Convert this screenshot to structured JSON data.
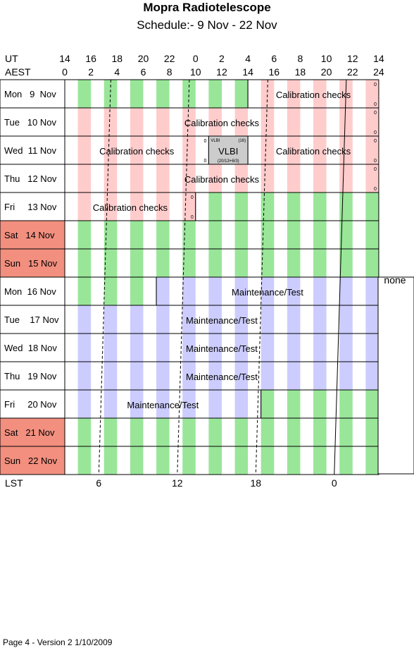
{
  "title": "Mopra Radiotelescope",
  "subtitle": "Schedule:- 9  Nov - 22 Nov",
  "ut_label": "UT",
  "aest_label": "AEST",
  "lst_label": "LST",
  "ut_hours": [
    "14",
    "16",
    "18",
    "20",
    "22",
    "0",
    "2",
    "4",
    "6",
    "8",
    "10",
    "12",
    "14"
  ],
  "aest_hours": [
    "0",
    "2",
    "4",
    "6",
    "8",
    "10",
    "12",
    "14",
    "16",
    "18",
    "20",
    "22",
    "24"
  ],
  "lst_ticks": [
    {
      "label": "6",
      "utc_hour": 16.6
    },
    {
      "label": "12",
      "utc_hour": 22.6
    },
    {
      "label": "18",
      "utc_hour": 28.6
    },
    {
      "label": "0",
      "utc_hour": 34.6
    }
  ],
  "colors": {
    "green": "#99e699",
    "pink": "#ffcccc",
    "lavender": "#ccccff",
    "gray": "#cccccc",
    "weekend": "#f28f7f",
    "white": "#ffffff"
  },
  "days": [
    {
      "label": "Mon   9  Nov",
      "weekend": false,
      "segments": [
        {
          "from": 0,
          "to": 14,
          "color": "green"
        },
        {
          "from": 14,
          "to": 24,
          "color": "pink",
          "label": "Calibration checks",
          "marks": [
            "0",
            "0"
          ]
        }
      ]
    },
    {
      "label": "Tue   10 Nov",
      "weekend": false,
      "segments": [
        {
          "from": 0,
          "to": 24,
          "color": "pink",
          "label": "Calibration checks",
          "marks": [
            "0",
            "0"
          ]
        }
      ]
    },
    {
      "label": "Wed  11 Nov",
      "weekend": false,
      "segments": [
        {
          "from": 0,
          "to": 11,
          "color": "pink",
          "label": "Calibration checks",
          "marks": [
            "0",
            "0"
          ]
        },
        {
          "from": 11,
          "to": 14,
          "color": "gray",
          "label": "VLBI",
          "vlbi": true,
          "tl": "VLBI",
          "tr": "(16)",
          "bl": "(20/13+6/3)"
        },
        {
          "from": 14,
          "to": 24,
          "color": "pink",
          "label": "Calibration checks",
          "marks": [
            "0",
            "0"
          ]
        }
      ]
    },
    {
      "label": "Thu   12 Nov",
      "weekend": false,
      "segments": [
        {
          "from": 0,
          "to": 24,
          "color": "pink",
          "label": "Calibration checks",
          "marks": [
            "0",
            "0"
          ]
        }
      ]
    },
    {
      "label": "Fri     13 Nov",
      "weekend": false,
      "segments": [
        {
          "from": 0,
          "to": 10,
          "color": "pink",
          "label": "Calibration checks",
          "marks": [
            "0",
            "0"
          ]
        },
        {
          "from": 10,
          "to": 24,
          "color": "green"
        }
      ]
    },
    {
      "label": "Sat   14 Nov",
      "weekend": true,
      "segments": [
        {
          "from": 0,
          "to": 24,
          "color": "green"
        }
      ]
    },
    {
      "label": "Sun   15 Nov",
      "weekend": true,
      "segments": [
        {
          "from": 0,
          "to": 24,
          "color": "green"
        }
      ]
    },
    {
      "label": "Mon  16 Nov",
      "weekend": false,
      "segments": [
        {
          "from": 0,
          "to": 7,
          "color": "green"
        },
        {
          "from": 7,
          "to": 24,
          "color": "lavender",
          "label": "Maintenance/Test"
        }
      ]
    },
    {
      "label": "Tue    17 Nov",
      "weekend": false,
      "segments": [
        {
          "from": 0,
          "to": 24,
          "color": "lavender",
          "label": "Maintenance/Test"
        }
      ]
    },
    {
      "label": "Wed  18 Nov",
      "weekend": false,
      "segments": [
        {
          "from": 0,
          "to": 24,
          "color": "lavender",
          "label": "Maintenance/Test"
        }
      ]
    },
    {
      "label": "Thu   19 Nov",
      "weekend": false,
      "segments": [
        {
          "from": 0,
          "to": 24,
          "color": "lavender",
          "label": "Maintenance/Test"
        }
      ]
    },
    {
      "label": "Fri     20 Nov",
      "weekend": false,
      "segments": [
        {
          "from": 0,
          "to": 15,
          "color": "lavender",
          "label": "Maintenance/Test"
        },
        {
          "from": 15,
          "to": 24,
          "color": "green"
        }
      ]
    },
    {
      "label": "Sat   21 Nov",
      "weekend": true,
      "segments": [
        {
          "from": 0,
          "to": 24,
          "color": "green"
        }
      ]
    },
    {
      "label": "Sun   22 Nov",
      "weekend": true,
      "segments": [
        {
          "from": 0,
          "to": 24,
          "color": "green"
        }
      ]
    }
  ],
  "side_note": "none",
  "footer": "Page 4 - Version 2  1/10/2009"
}
